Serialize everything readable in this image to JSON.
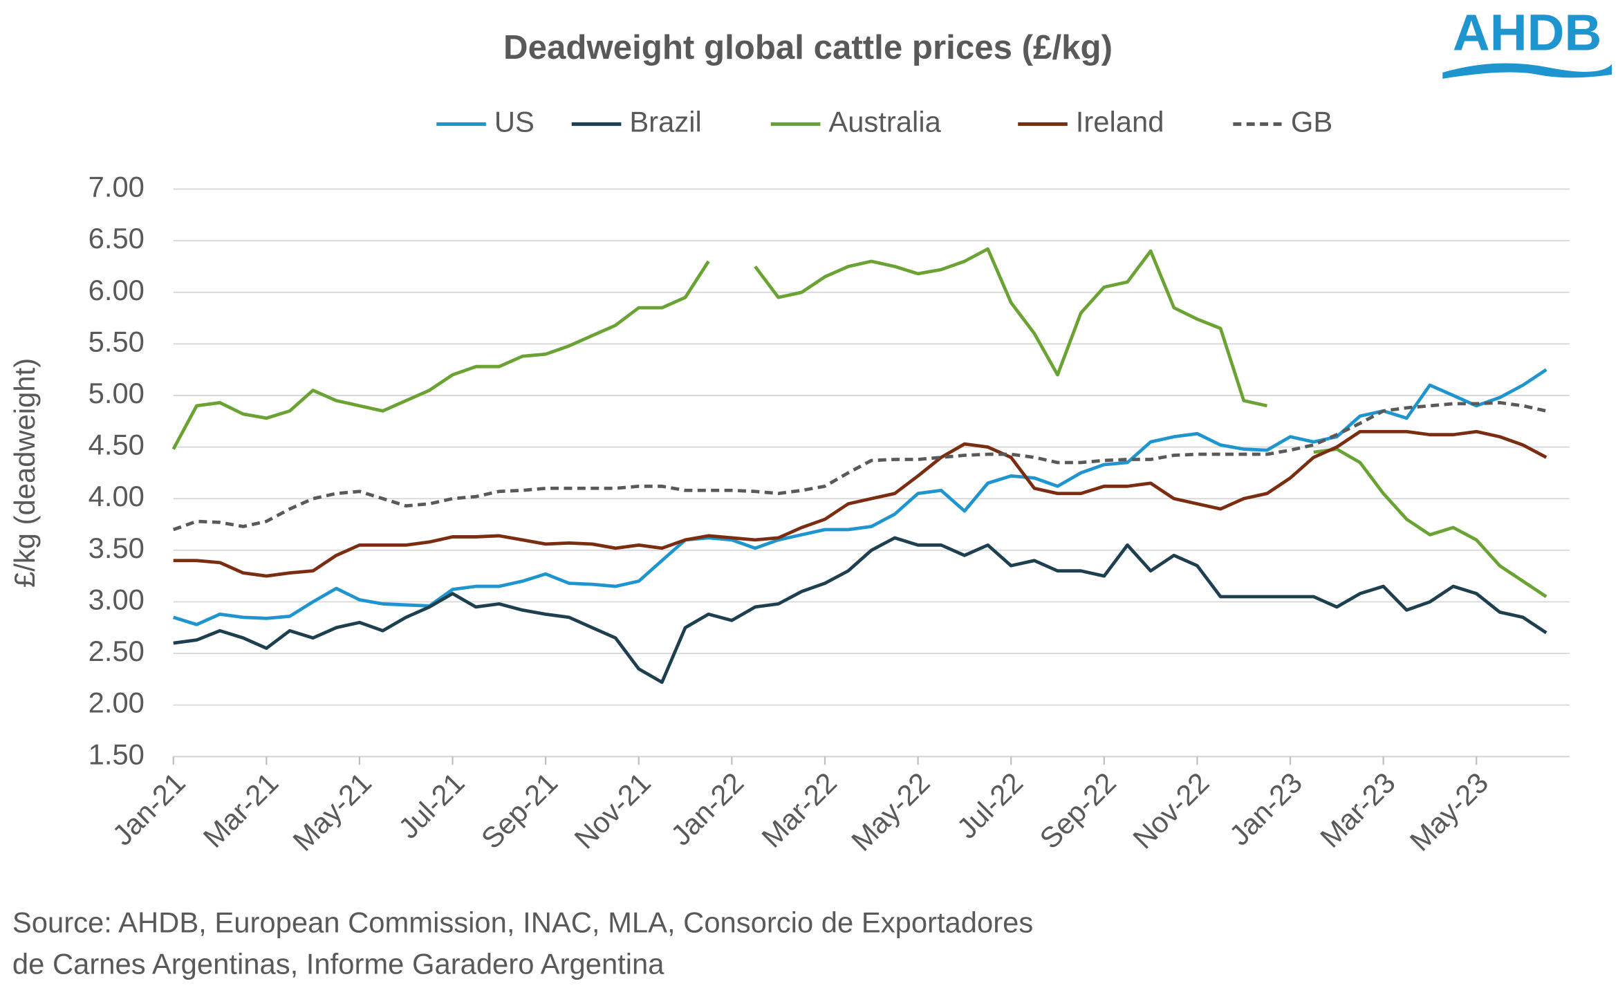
{
  "chart_data": {
    "type": "line",
    "title": "Deadweight global cattle prices (£/kg)",
    "logo": "AHDB",
    "y_label": "£/kg (deadweight)",
    "source": [
      "Source: AHDB, European Commission, INAC, MLA, Consorcio de Exportadores",
      "de Carnes Argentinas, Informe Garadero Argentina"
    ],
    "categories": [
      "Jan-21",
      null,
      null,
      null,
      "Mar-21",
      null,
      null,
      null,
      "May-21",
      null,
      null,
      null,
      "Jul-21",
      null,
      null,
      null,
      "Sep-21",
      null,
      null,
      null,
      "Nov-21",
      null,
      null,
      null,
      "Jan-22",
      null,
      null,
      null,
      "Mar-22",
      null,
      null,
      null,
      "May-22",
      null,
      null,
      null,
      "Jul-22",
      null,
      null,
      null,
      "Sep-22",
      null,
      null,
      null,
      "Nov-22",
      null,
      null,
      null,
      "Jan-23",
      null,
      null,
      null,
      "Mar-23",
      null,
      null,
      null,
      "May-23",
      null,
      null,
      null
    ],
    "ylim": [
      1.5,
      7.0
    ],
    "yticks": [
      {
        "value": 1.5,
        "label": "1.50"
      },
      {
        "value": 2,
        "label": "2.00"
      },
      {
        "value": 2.5,
        "label": "2.50"
      },
      {
        "value": 3,
        "label": "3.00"
      },
      {
        "value": 3.5,
        "label": "3.50"
      },
      {
        "value": 4,
        "label": "4.00"
      },
      {
        "value": 4.5,
        "label": "4.50"
      },
      {
        "value": 5,
        "label": "5.00"
      },
      {
        "value": 5.5,
        "label": "5.50"
      },
      {
        "value": 6,
        "label": "6.00"
      },
      {
        "value": 6.5,
        "label": "6.50"
      },
      {
        "value": 7,
        "label": "7.00"
      }
    ],
    "grid": true,
    "legend": "top",
    "series": [
      {
        "name": "US",
        "color": "#1f95d0",
        "dash": false,
        "values": [
          2.85,
          2.78,
          2.88,
          2.85,
          2.84,
          2.86,
          3.0,
          3.13,
          3.02,
          2.98,
          2.97,
          2.96,
          3.12,
          3.15,
          3.15,
          3.2,
          3.27,
          3.18,
          3.17,
          3.15,
          3.2,
          3.4,
          3.6,
          3.62,
          3.6,
          3.52,
          3.6,
          3.65,
          3.7,
          3.7,
          3.73,
          3.85,
          4.05,
          4.08,
          3.88,
          4.15,
          4.22,
          4.2,
          4.12,
          4.25,
          4.33,
          4.35,
          4.55,
          4.6,
          4.63,
          4.52,
          4.48,
          4.47,
          4.6,
          4.55,
          4.6,
          4.8,
          4.85,
          4.78,
          5.1,
          5.0,
          4.9,
          4.98,
          5.1,
          5.25
        ]
      },
      {
        "name": "Brazil",
        "color": "#1e3f4f",
        "dash": false,
        "values": [
          2.6,
          2.63,
          2.72,
          2.65,
          2.55,
          2.72,
          2.65,
          2.75,
          2.8,
          2.72,
          2.85,
          2.95,
          3.08,
          2.95,
          2.98,
          2.92,
          2.88,
          2.85,
          2.75,
          2.65,
          2.35,
          2.22,
          2.75,
          2.88,
          2.82,
          2.95,
          2.98,
          3.1,
          3.18,
          3.3,
          3.5,
          3.62,
          3.55,
          3.55,
          3.45,
          3.55,
          3.35,
          3.4,
          3.3,
          3.3,
          3.25,
          3.55,
          3.3,
          3.45,
          3.35,
          3.05,
          3.05,
          3.05,
          3.05,
          3.05,
          2.95,
          3.08,
          3.15,
          2.92,
          3.0,
          3.15,
          3.08,
          2.9,
          2.85,
          2.7
        ]
      },
      {
        "name": "Australia",
        "color": "#6aa334",
        "dash": false,
        "values": [
          4.48,
          4.9,
          4.93,
          4.82,
          4.78,
          4.85,
          5.05,
          4.95,
          4.9,
          4.85,
          4.95,
          5.05,
          5.2,
          5.28,
          5.28,
          5.38,
          5.4,
          5.48,
          5.58,
          5.68,
          5.85,
          5.85,
          5.95,
          6.3,
          null,
          6.25,
          5.95,
          6.0,
          6.15,
          6.25,
          6.3,
          6.25,
          6.18,
          6.22,
          6.3,
          6.42,
          5.9,
          5.6,
          5.2,
          5.8,
          6.05,
          6.1,
          6.4,
          5.85,
          5.74,
          5.65,
          4.95,
          4.9,
          null,
          4.45,
          4.48,
          4.35,
          4.05,
          3.8,
          3.65,
          3.72,
          3.6,
          3.35,
          3.2,
          3.05
        ]
      },
      {
        "name": "Ireland",
        "color": "#7b2d12",
        "dash": false,
        "values": [
          3.4,
          3.4,
          3.38,
          3.28,
          3.25,
          3.28,
          3.3,
          3.45,
          3.55,
          3.55,
          3.55,
          3.58,
          3.63,
          3.63,
          3.64,
          3.6,
          3.56,
          3.57,
          3.56,
          3.52,
          3.55,
          3.52,
          3.6,
          3.64,
          3.62,
          3.6,
          3.62,
          3.72,
          3.8,
          3.95,
          4.0,
          4.05,
          4.22,
          4.4,
          4.53,
          4.5,
          4.4,
          4.1,
          4.05,
          4.05,
          4.12,
          4.12,
          4.15,
          4.0,
          3.95,
          3.9,
          4.0,
          4.05,
          4.2,
          4.4,
          4.5,
          4.65,
          4.65,
          4.65,
          4.62,
          4.62,
          4.65,
          4.6,
          4.52,
          4.4
        ]
      },
      {
        "name": "GB",
        "color": "#595959",
        "dash": true,
        "values": [
          3.7,
          3.78,
          3.77,
          3.73,
          3.78,
          3.9,
          4.0,
          4.05,
          4.07,
          4.0,
          3.93,
          3.95,
          4.0,
          4.02,
          4.07,
          4.08,
          4.1,
          4.1,
          4.1,
          4.1,
          4.12,
          4.12,
          4.08,
          4.08,
          4.08,
          4.07,
          4.05,
          4.08,
          4.12,
          4.25,
          4.37,
          4.38,
          4.38,
          4.4,
          4.42,
          4.43,
          4.43,
          4.4,
          4.35,
          4.35,
          4.37,
          4.38,
          4.38,
          4.42,
          4.43,
          4.43,
          4.43,
          4.43,
          4.47,
          4.52,
          4.62,
          4.73,
          4.85,
          4.88,
          4.9,
          4.92,
          4.92,
          4.93,
          4.9,
          4.85
        ]
      }
    ]
  }
}
